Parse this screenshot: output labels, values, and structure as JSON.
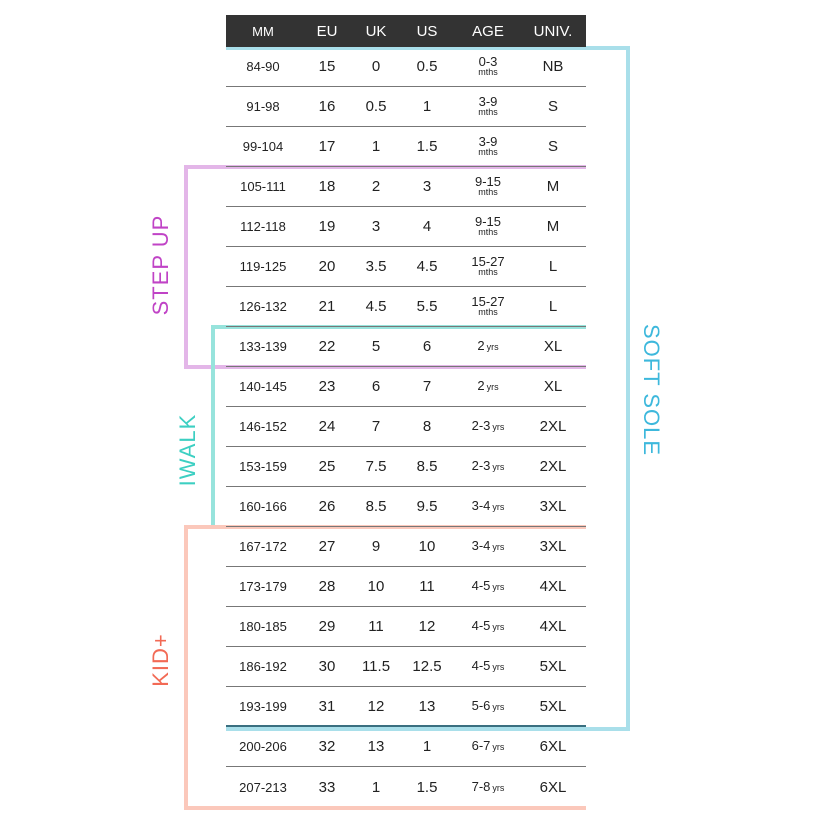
{
  "headers": [
    "MM",
    "EU",
    "UK",
    "US",
    "AGE",
    "UNIV."
  ],
  "rows": [
    {
      "mm": "84-90",
      "eu": "15",
      "uk": "0",
      "us": "0.5",
      "age": "0-3",
      "unit": "mths",
      "univ": "NB"
    },
    {
      "mm": "91-98",
      "eu": "16",
      "uk": "0.5",
      "us": "1",
      "age": "3-9",
      "unit": "mths",
      "univ": "S"
    },
    {
      "mm": "99-104",
      "eu": "17",
      "uk": "1",
      "us": "1.5",
      "age": "3-9",
      "unit": "mths",
      "univ": "S"
    },
    {
      "mm": "105-111",
      "eu": "18",
      "uk": "2",
      "us": "3",
      "age": "9-15",
      "unit": "mths",
      "univ": "M"
    },
    {
      "mm": "112-118",
      "eu": "19",
      "uk": "3",
      "us": "4",
      "age": "9-15",
      "unit": "mths",
      "univ": "M"
    },
    {
      "mm": "119-125",
      "eu": "20",
      "uk": "3.5",
      "us": "4.5",
      "age": "15-27",
      "unit": "mths",
      "univ": "L"
    },
    {
      "mm": "126-132",
      "eu": "21",
      "uk": "4.5",
      "us": "5.5",
      "age": "15-27",
      "unit": "mths",
      "univ": "L"
    },
    {
      "mm": "133-139",
      "eu": "22",
      "uk": "5",
      "us": "6",
      "age": "2",
      "unit": "yrs",
      "univ": "XL"
    },
    {
      "mm": "140-145",
      "eu": "23",
      "uk": "6",
      "us": "7",
      "age": "2",
      "unit": "yrs",
      "univ": "XL"
    },
    {
      "mm": "146-152",
      "eu": "24",
      "uk": "7",
      "us": "8",
      "age": "2-3",
      "unit": "yrs",
      "univ": "2XL"
    },
    {
      "mm": "153-159",
      "eu": "25",
      "uk": "7.5",
      "us": "8.5",
      "age": "2-3",
      "unit": "yrs",
      "univ": "2XL"
    },
    {
      "mm": "160-166",
      "eu": "26",
      "uk": "8.5",
      "us": "9.5",
      "age": "3-4",
      "unit": "yrs",
      "univ": "3XL"
    },
    {
      "mm": "167-172",
      "eu": "27",
      "uk": "9",
      "us": "10",
      "age": "3-4",
      "unit": "yrs",
      "univ": "3XL"
    },
    {
      "mm": "173-179",
      "eu": "28",
      "uk": "10",
      "us": "11",
      "age": "4-5",
      "unit": "yrs",
      "univ": "4XL"
    },
    {
      "mm": "180-185",
      "eu": "29",
      "uk": "11",
      "us": "12",
      "age": "4-5",
      "unit": "yrs",
      "univ": "4XL"
    },
    {
      "mm": "186-192",
      "eu": "30",
      "uk": "11.5",
      "us": "12.5",
      "age": "4-5",
      "unit": "yrs",
      "univ": "5XL"
    },
    {
      "mm": "193-199",
      "eu": "31",
      "uk": "12",
      "us": "13",
      "age": "5-6",
      "unit": "yrs",
      "univ": "5XL"
    },
    {
      "mm": "200-206",
      "eu": "32",
      "uk": "13",
      "us": "1",
      "age": "6-7",
      "unit": "yrs",
      "univ": "6XL"
    },
    {
      "mm": "207-213",
      "eu": "33",
      "uk": "1",
      "us": "1.5",
      "age": "7-8",
      "unit": "yrs",
      "univ": "6XL"
    }
  ],
  "ranges": {
    "soft_sole": {
      "label": "SOFT SOLE",
      "color": "#3db8dc",
      "line": "#a9dfea"
    },
    "step_up": {
      "label": "STEP UP",
      "color": "#c043c6",
      "line": "#e3b6e8"
    },
    "iwalk": {
      "label": "IWALK",
      "color": "#3ccfc2",
      "line": "#97e3dc"
    },
    "kid_plus": {
      "label": "KID+",
      "color": "#f26a55",
      "line": "#fbc8bb"
    }
  }
}
